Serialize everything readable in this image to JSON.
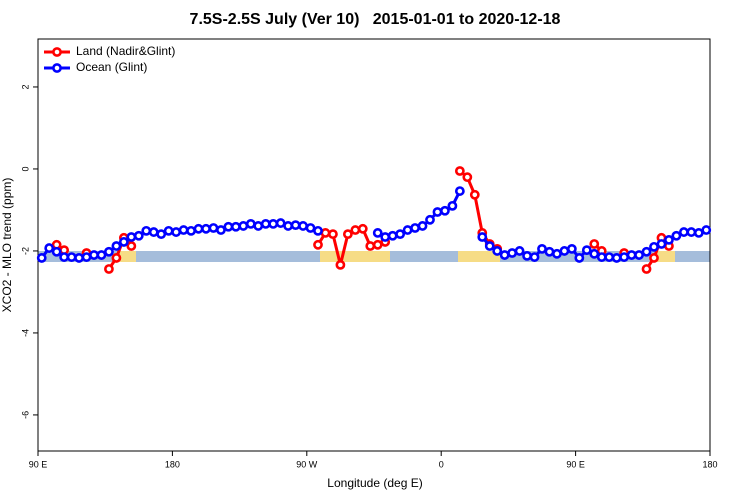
{
  "chart_data": {
    "type": "line",
    "title": "7.5S-2.5S July (Ver 10)   2015-01-01 to 2020-12-18",
    "x_label": "Longitude (deg E)",
    "y_label": "XCO2 - MLO trend (ppm)",
    "legend": "top-left",
    "xlim": [
      90,
      540
    ],
    "ylim": [
      -6.88,
      3.17
    ],
    "xticks": [
      {
        "value": 90,
        "label": "90 E"
      },
      {
        "value": 180,
        "label": "180"
      },
      {
        "value": 270,
        "label": "90 W"
      },
      {
        "value": 360,
        "label": "0"
      },
      {
        "value": 450,
        "label": "90 E"
      },
      {
        "value": 540,
        "label": "180"
      }
    ],
    "yticks": [
      2,
      0,
      -2,
      -4,
      -6
    ],
    "x": [
      92.5,
      97.5,
      102.5,
      107.5,
      112.5,
      117.5,
      122.5,
      127.5,
      132.5,
      137.5,
      142.5,
      147.5,
      152.5,
      157.5,
      162.5,
      167.5,
      172.5,
      177.5,
      182.5,
      187.5,
      192.5,
      197.5,
      202.5,
      207.5,
      212.5,
      217.5,
      222.5,
      227.5,
      232.5,
      237.5,
      242.5,
      247.5,
      252.5,
      257.5,
      262.5,
      267.5,
      272.5,
      277.5,
      282.5,
      287.5,
      292.5,
      297.5,
      302.5,
      307.5,
      312.5,
      317.5,
      322.5,
      327.5,
      332.5,
      337.5,
      342.5,
      347.5,
      352.5,
      357.5,
      362.5,
      367.5,
      372.5,
      377.5,
      382.5,
      387.5,
      392.5,
      397.5,
      402.5,
      407.5,
      412.5,
      417.5,
      422.5,
      427.5,
      432.5,
      437.5,
      442.5,
      447.5,
      452.5,
      457.5,
      462.5,
      467.5,
      472.5,
      477.5,
      482.5,
      487.5,
      492.5,
      497.5,
      502.5,
      507.5,
      512.5,
      517.5,
      522.5,
      527.5,
      532.5,
      537.5
    ],
    "series": [
      {
        "name": "Land (Nadir&Glint)",
        "color": "#ff0000",
        "values": [
          null,
          null,
          -1.85,
          -1.98,
          null,
          null,
          -2.05,
          null,
          null,
          -2.44,
          -2.17,
          -1.68,
          -1.88,
          null,
          null,
          null,
          null,
          null,
          null,
          null,
          null,
          null,
          null,
          null,
          null,
          null,
          null,
          null,
          null,
          null,
          null,
          null,
          null,
          null,
          null,
          null,
          null,
          -1.85,
          -1.56,
          -1.59,
          -2.34,
          -1.59,
          -1.49,
          -1.46,
          -1.88,
          -1.85,
          -1.78,
          null,
          null,
          null,
          null,
          null,
          null,
          null,
          null,
          null,
          -0.05,
          -0.2,
          -0.63,
          -1.56,
          -1.83,
          -1.95,
          null,
          null,
          null,
          null,
          null,
          null,
          null,
          null,
          null,
          null,
          null,
          null,
          -1.83,
          -2.0,
          null,
          null,
          -2.05,
          null,
          null,
          -2.44,
          -2.17,
          -1.68,
          -1.88,
          null,
          null,
          null,
          null,
          null
        ]
      },
      {
        "name": "Ocean (Glint)",
        "color": "#0000ff",
        "values": [
          -2.17,
          -1.93,
          -2.02,
          -2.15,
          -2.15,
          -2.17,
          -2.15,
          -2.1,
          -2.1,
          -2.02,
          -1.88,
          -1.78,
          -1.66,
          -1.63,
          -1.51,
          -1.54,
          -1.59,
          -1.51,
          -1.54,
          -1.49,
          -1.51,
          -1.46,
          -1.46,
          -1.44,
          -1.49,
          -1.41,
          -1.41,
          -1.39,
          -1.34,
          -1.39,
          -1.34,
          -1.34,
          -1.32,
          -1.39,
          -1.37,
          -1.39,
          -1.44,
          -1.51,
          null,
          null,
          null,
          null,
          null,
          null,
          null,
          -1.56,
          -1.66,
          -1.63,
          -1.59,
          -1.49,
          -1.44,
          -1.39,
          -1.24,
          -1.05,
          -1.02,
          -0.9,
          -0.54,
          null,
          null,
          -1.66,
          -1.88,
          -2.0,
          -2.1,
          -2.05,
          -2.0,
          -2.12,
          -2.15,
          -1.95,
          -2.02,
          -2.07,
          -2.0,
          -1.95,
          -2.17,
          -1.98,
          -2.07,
          -2.15,
          -2.15,
          -2.17,
          -2.15,
          -2.1,
          -2.1,
          -2.02,
          -1.9,
          -1.83,
          -1.73,
          -1.63,
          -1.54,
          -1.54,
          -1.56,
          -1.49
        ]
      }
    ]
  }
}
